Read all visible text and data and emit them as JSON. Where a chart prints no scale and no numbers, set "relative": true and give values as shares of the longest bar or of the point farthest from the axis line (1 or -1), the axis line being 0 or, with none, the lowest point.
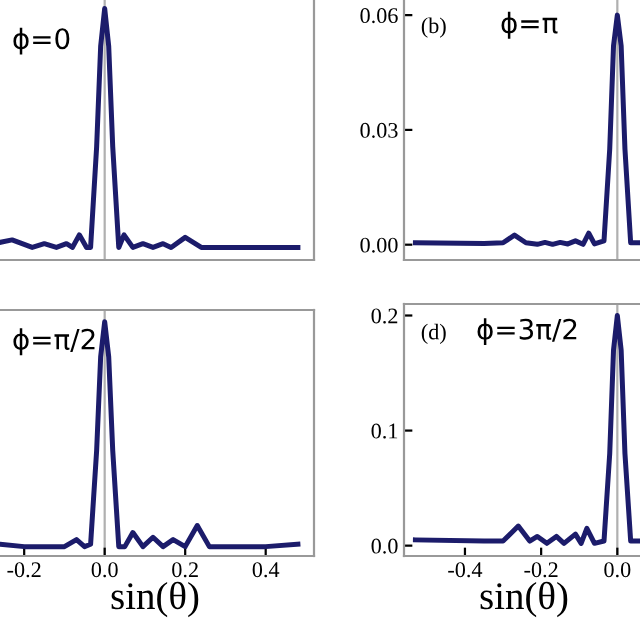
{
  "chart_data": [
    {
      "type": "line",
      "relative": true,
      "xlim": [
        -0.27,
        0.52
      ],
      "tick_labels": false,
      "annotations": [
        "ϕ=0"
      ],
      "ref_lines": [
        {
          "axis": "x",
          "value": 0,
          "color": "#b0b0b0"
        }
      ],
      "series": [
        {
          "color": "#1c1c6b",
          "x": [
            -0.26,
            -0.23,
            -0.18,
            -0.15,
            -0.12,
            -0.095,
            -0.08,
            -0.063,
            -0.045,
            -0.035,
            -0.02,
            -0.01,
            0,
            0.01,
            0.02,
            0.035,
            0.048,
            0.07,
            0.095,
            0.12,
            0.145,
            0.165,
            0.2,
            0.24,
            0.27,
            0.35,
            0.48
          ],
          "values": [
            0.07,
            0.08,
            0.05,
            0.065,
            0.05,
            0.065,
            0.05,
            0.1,
            0.05,
            0.05,
            0.45,
            0.85,
            1,
            0.85,
            0.45,
            0.05,
            0.1,
            0.05,
            0.065,
            0.05,
            0.065,
            0.05,
            0.09,
            0.05,
            0.05,
            0.05,
            0.05
          ]
        }
      ]
    },
    {
      "type": "line",
      "xlim": [
        -0.56,
        0.07
      ],
      "ylim": [
        -0.004,
        0.065
      ],
      "yticks": [
        {
          "value": 0,
          "label": "0.00"
        },
        0.03,
        0.06
      ],
      "tick_labels": "y",
      "annotations": [
        "(b)",
        "ϕ=π"
      ],
      "ref_lines": [
        {
          "axis": "x",
          "value": 0,
          "color": "#b0b0b0"
        }
      ],
      "series": [
        {
          "color": "#1c1c6b",
          "x": [
            -0.53,
            -0.35,
            -0.3,
            -0.27,
            -0.24,
            -0.21,
            -0.19,
            -0.17,
            -0.15,
            -0.13,
            -0.11,
            -0.09,
            -0.075,
            -0.06,
            -0.035,
            -0.02,
            -0.01,
            0,
            0.01,
            0.02,
            0.035,
            0.06
          ],
          "values": [
            0.0005,
            0.0003,
            0.0005,
            0.0025,
            0.0005,
            0.0001,
            0.0006,
            0.0001,
            0.0006,
            0.0002,
            0.001,
            0.0001,
            0.003,
            0.0002,
            0.001,
            0.025,
            0.052,
            0.06,
            0.052,
            0.025,
            0.0005,
            0.0005
          ]
        }
      ]
    },
    {
      "type": "line",
      "relative": true,
      "xlim": [
        -0.27,
        0.52
      ],
      "xticks": [
        -0.2,
        {
          "value": 0,
          "label": "0.0"
        },
        0.2,
        0.4
      ],
      "tick_labels": "x",
      "xlabel": "sin(θ)",
      "annotations": [
        "ϕ=π/2"
      ],
      "ref_lines": [
        {
          "axis": "x",
          "value": 0,
          "color": "#b0b0b0"
        }
      ],
      "series": [
        {
          "color": "#1c1c6b",
          "x": [
            -0.26,
            -0.2,
            -0.15,
            -0.1,
            -0.07,
            -0.05,
            -0.035,
            -0.02,
            -0.01,
            0,
            0.01,
            0.02,
            0.035,
            0.05,
            0.07,
            0.095,
            0.12,
            0.145,
            0.17,
            0.2,
            0.23,
            0.26,
            0.3,
            0.4,
            0.48
          ],
          "values": [
            0.05,
            0.04,
            0.04,
            0.04,
            0.07,
            0.04,
            0.05,
            0.45,
            0.85,
            1,
            0.85,
            0.45,
            0.04,
            0.04,
            0.1,
            0.04,
            0.08,
            0.04,
            0.07,
            0.04,
            0.13,
            0.04,
            0.04,
            0.04,
            0.05
          ]
        }
      ]
    },
    {
      "type": "line",
      "xlim": [
        -0.56,
        0.07
      ],
      "ylim": [
        -0.009,
        0.21
      ],
      "yticks": [
        {
          "value": 0,
          "label": "0.0"
        },
        0.1,
        0.2
      ],
      "xticks": [
        -0.4,
        -0.2,
        {
          "value": 0,
          "label": "0.0"
        }
      ],
      "xlabel": "sin(θ)",
      "annotations": [
        "(d)",
        "ϕ=3π/2"
      ],
      "ref_lines": [
        {
          "axis": "x",
          "value": 0,
          "color": "#b0b0b0"
        }
      ],
      "series": [
        {
          "color": "#1c1c6b",
          "x": [
            -0.53,
            -0.35,
            -0.3,
            -0.26,
            -0.23,
            -0.21,
            -0.185,
            -0.16,
            -0.14,
            -0.11,
            -0.095,
            -0.08,
            -0.06,
            -0.035,
            -0.02,
            -0.01,
            0,
            0.01,
            0.02,
            0.035,
            0.06
          ],
          "values": [
            0.005,
            0.004,
            0.004,
            0.017,
            0.004,
            0.008,
            0.002,
            0.008,
            0.002,
            0.01,
            0.002,
            0.015,
            0.002,
            0.004,
            0.08,
            0.17,
            0.2,
            0.17,
            0.08,
            0.004,
            0.004
          ]
        }
      ]
    }
  ]
}
